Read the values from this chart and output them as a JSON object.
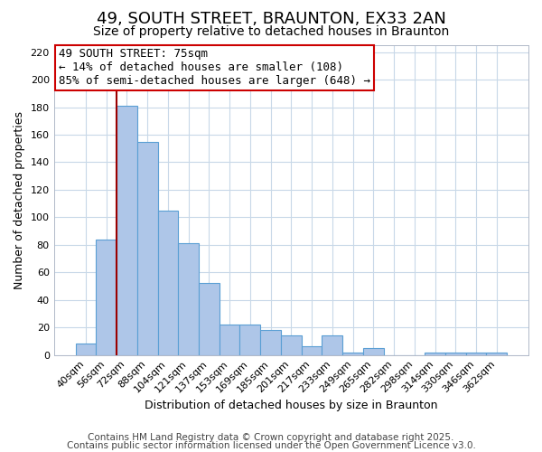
{
  "title": "49, SOUTH STREET, BRAUNTON, EX33 2AN",
  "subtitle": "Size of property relative to detached houses in Braunton",
  "xlabel": "Distribution of detached houses by size in Braunton",
  "ylabel": "Number of detached properties",
  "bar_labels": [
    "40sqm",
    "56sqm",
    "72sqm",
    "88sqm",
    "104sqm",
    "121sqm",
    "137sqm",
    "153sqm",
    "169sqm",
    "185sqm",
    "201sqm",
    "217sqm",
    "233sqm",
    "249sqm",
    "265sqm",
    "282sqm",
    "298sqm",
    "314sqm",
    "330sqm",
    "346sqm",
    "362sqm"
  ],
  "bar_values": [
    8,
    84,
    181,
    155,
    105,
    81,
    52,
    22,
    22,
    18,
    14,
    6,
    14,
    2,
    5,
    0,
    0,
    2,
    2,
    2,
    2
  ],
  "bar_color": "#aec6e8",
  "bar_edge_color": "#5a9fd4",
  "ylim": [
    0,
    225
  ],
  "yticks": [
    0,
    20,
    40,
    60,
    80,
    100,
    120,
    140,
    160,
    180,
    200,
    220
  ],
  "vline_x_index": 2,
  "vline_color": "#9b0000",
  "annotation_line1": "49 SOUTH STREET: 75sqm",
  "annotation_line2": "← 14% of detached houses are smaller (108)",
  "annotation_line3": "85% of semi-detached houses are larger (648) →",
  "footer1": "Contains HM Land Registry data © Crown copyright and database right 2025.",
  "footer2": "Contains public sector information licensed under the Open Government Licence v3.0.",
  "bg_color": "#ffffff",
  "grid_color": "#c8d8e8",
  "title_fontsize": 13,
  "subtitle_fontsize": 10,
  "axis_label_fontsize": 9,
  "tick_fontsize": 8,
  "footer_fontsize": 7.5,
  "ann_fontsize": 9
}
